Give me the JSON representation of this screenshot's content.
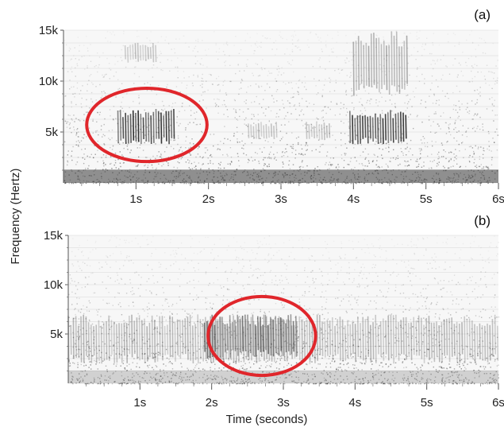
{
  "figure": {
    "ylabel": "Frequency (Hertz)",
    "xlabel": "Time (seconds)"
  },
  "chart_data": [
    {
      "type": "heatmap",
      "panel_label": "(a)",
      "x_unit": "s",
      "y_unit": "Hz",
      "xlim": [
        0,
        6
      ],
      "ylim": [
        0,
        15000
      ],
      "xticks": [
        1,
        2,
        3,
        4,
        5,
        6
      ],
      "xtick_labels": [
        "1s",
        "2s",
        "3s",
        "4s",
        "5s",
        "6s"
      ],
      "yticks": [
        5000,
        10000,
        15000
      ],
      "ytick_labels": [
        "5k",
        "10k",
        "15k"
      ],
      "grid": true,
      "call_segments": [
        {
          "t_start": 0.75,
          "t_end": 1.55,
          "f_low": 3800,
          "f_high": 7300,
          "intensity": 0.9
        },
        {
          "t_start": 0.85,
          "t_end": 1.3,
          "f_low": 11800,
          "f_high": 13800,
          "intensity": 0.25
        },
        {
          "t_start": 3.95,
          "t_end": 4.75,
          "f_low": 3800,
          "f_high": 7200,
          "intensity": 0.9
        },
        {
          "t_start": 4.0,
          "t_end": 4.75,
          "f_low": 8500,
          "f_high": 15000,
          "intensity": 0.35
        },
        {
          "t_start": 2.55,
          "t_end": 2.95,
          "f_low": 4200,
          "f_high": 6000,
          "intensity": 0.25
        },
        {
          "t_start": 3.35,
          "t_end": 3.7,
          "f_low": 4200,
          "f_high": 6000,
          "intensity": 0.25
        }
      ],
      "highlight_ellipse": {
        "t_center": 1.15,
        "f_center": 5700,
        "t_radius": 0.83,
        "f_radius": 3600,
        "color": "#e0262b"
      }
    },
    {
      "type": "heatmap",
      "panel_label": "(b)",
      "x_unit": "s",
      "y_unit": "Hz",
      "xlim": [
        0,
        6
      ],
      "ylim": [
        0,
        15000
      ],
      "xticks": [
        1,
        2,
        3,
        4,
        5,
        6
      ],
      "xtick_labels": [
        "1s",
        "2s",
        "3s",
        "4s",
        "5s",
        "6s"
      ],
      "yticks": [
        5000,
        10000,
        15000
      ],
      "ytick_labels": [
        "5k",
        "10k",
        "15k"
      ],
      "grid": true,
      "call_segments": [
        {
          "t_start": 0.0,
          "t_end": 6.0,
          "f_low": 2000,
          "f_high": 7000,
          "intensity": 0.3
        },
        {
          "t_start": 1.9,
          "t_end": 3.2,
          "f_low": 2500,
          "f_high": 7000,
          "intensity": 0.6
        }
      ],
      "highlight_ellipse": {
        "t_center": 2.7,
        "f_center": 4800,
        "t_radius": 0.75,
        "f_radius": 4000,
        "color": "#e0262b"
      }
    }
  ]
}
